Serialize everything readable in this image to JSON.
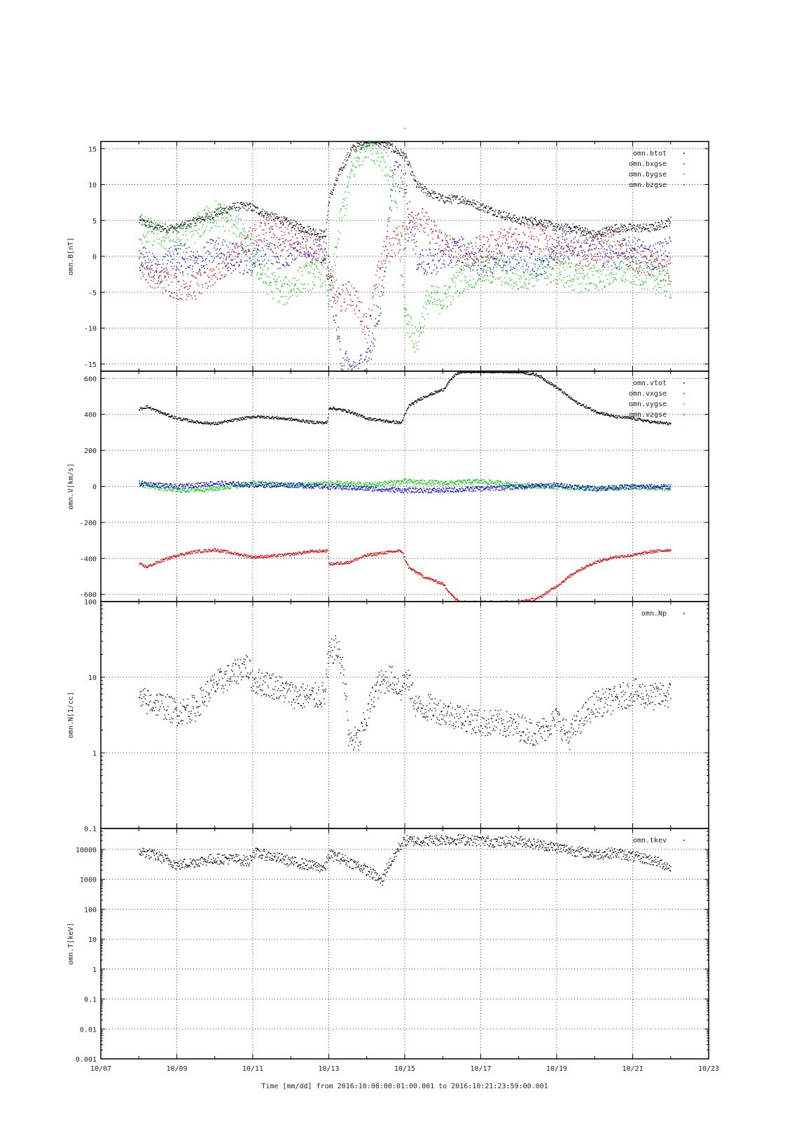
{
  "figure": {
    "top_mark": "-",
    "xlabel": "Time [mm/dd]  from 2016:10:08:00:01:00.001  to  2016:10:21:23:59:00.001",
    "x_tick_labels": [
      "10/07",
      "10/09",
      "10/11",
      "10/13",
      "10/15",
      "10/17",
      "10/19",
      "10/21",
      "10/23"
    ]
  },
  "colors": {
    "black": "#000000",
    "red": "#e00000",
    "green": "#00cc00",
    "blue": "#0000e0"
  },
  "chart_data": [
    {
      "type": "scatter",
      "ylabel": "omn.B[nT]",
      "yscale": "linear",
      "ylim": [
        -16,
        16
      ],
      "y_ticks": [
        -15,
        -10,
        -5,
        0,
        5,
        10,
        15
      ],
      "y_tick_labels": [
        "-15",
        "-10",
        "-5",
        "0",
        "5",
        "10",
        "15"
      ],
      "xlim_days": [
        7,
        23
      ],
      "grid": true,
      "legend_position": "top-right",
      "series": [
        {
          "name": "omn.btot",
          "color": "#000000",
          "x": [
            8.0,
            8.5,
            9.0,
            9.5,
            10.0,
            10.5,
            10.9,
            11.3,
            11.8,
            12.3,
            12.9,
            13.0,
            13.3,
            13.6,
            14.0,
            14.4,
            14.7,
            15.0,
            15.3,
            15.6,
            16.0,
            16.5,
            17.0,
            17.5,
            18.0,
            18.5,
            19.0,
            19.5,
            20.0,
            20.5,
            21.0,
            21.5,
            22.0
          ],
          "y": [
            5,
            4,
            4,
            5,
            6,
            7,
            7,
            6,
            5,
            4,
            3,
            8,
            12,
            15,
            16,
            16,
            15,
            14,
            10,
            9,
            8,
            8,
            7,
            6,
            5,
            5,
            4,
            4,
            3,
            4,
            4,
            4,
            5
          ]
        },
        {
          "name": "omn.bxgse",
          "color": "#e00000",
          "x": [
            8.0,
            8.5,
            9.0,
            9.5,
            10.0,
            10.5,
            10.9,
            11.3,
            11.8,
            12.3,
            12.9,
            13.0,
            13.3,
            13.6,
            14.0,
            14.4,
            14.7,
            15.0,
            15.3,
            15.6,
            16.0,
            16.5,
            17.0,
            17.5,
            18.0,
            18.5,
            19.0,
            19.5,
            20.0,
            20.5,
            21.0,
            21.5,
            22.0
          ],
          "y": [
            -1,
            -3,
            -4,
            -4,
            -2,
            0,
            2,
            4,
            3,
            2,
            1,
            -4,
            -6,
            -5,
            -10,
            0,
            2,
            3,
            6,
            4,
            2,
            0,
            1,
            2,
            3,
            3,
            1,
            0,
            1,
            2,
            0,
            -1,
            -2
          ]
        },
        {
          "name": "omn.bygse",
          "color": "#00cc00",
          "x": [
            8.0,
            8.5,
            9.0,
            9.5,
            10.0,
            10.5,
            10.9,
            11.3,
            11.8,
            12.3,
            12.9,
            13.0,
            13.3,
            13.6,
            14.0,
            14.4,
            14.7,
            15.0,
            15.3,
            15.6,
            16.0,
            16.5,
            17.0,
            17.5,
            18.0,
            18.5,
            19.0,
            19.5,
            20.0,
            20.5,
            21.0,
            21.5,
            22.0
          ],
          "y": [
            4,
            3,
            2,
            4,
            6,
            5,
            1,
            -3,
            -5,
            -3,
            -2,
            -6,
            5,
            12,
            16,
            14,
            10,
            -8,
            -12,
            -6,
            -6,
            -3,
            -2,
            -2,
            -3,
            -2,
            -2,
            -3,
            -3,
            -2,
            -2,
            -3,
            -4
          ]
        },
        {
          "name": "omn.bzgse",
          "color": "#0000e0",
          "x": [
            8.0,
            8.5,
            9.0,
            9.5,
            10.0,
            10.5,
            10.9,
            11.3,
            11.8,
            12.3,
            12.9,
            13.0,
            13.3,
            13.6,
            14.0,
            14.4,
            14.7,
            15.0,
            15.3,
            15.6,
            16.0,
            16.5,
            17.0,
            17.5,
            18.0,
            18.5,
            19.0,
            19.5,
            20.0,
            20.5,
            21.0,
            21.5,
            22.0
          ],
          "y": [
            0,
            -2,
            0,
            -1,
            1,
            0,
            -1,
            1,
            0,
            2,
            0,
            -2,
            -14,
            -16,
            -15,
            -5,
            12,
            10,
            0,
            -1,
            0,
            1,
            -1,
            0,
            0,
            -1,
            1,
            2,
            1,
            0,
            1,
            0,
            1
          ]
        }
      ]
    },
    {
      "type": "scatter",
      "ylabel": "omn.V[km/s]",
      "yscale": "linear",
      "ylim": [
        -640,
        640
      ],
      "y_ticks": [
        -600,
        -400,
        -200,
        0,
        200,
        400,
        600
      ],
      "y_tick_labels": [
        "-600",
        "-400",
        "-200",
        "0",
        "200",
        "400",
        "600"
      ],
      "xlim_days": [
        7,
        23
      ],
      "grid": true,
      "legend_position": "top-right",
      "series": [
        {
          "name": "omn.vtot",
          "color": "#000000",
          "x": [
            8.0,
            8.2,
            8.6,
            9.0,
            9.5,
            10.0,
            10.5,
            11.0,
            11.5,
            12.0,
            12.5,
            12.95,
            13.0,
            13.5,
            14.0,
            14.5,
            14.9,
            15.1,
            15.5,
            16.0,
            16.3,
            16.5,
            17.0,
            17.5,
            18.0,
            18.5,
            19.0,
            19.5,
            20.0,
            20.5,
            21.0,
            21.5,
            22.0
          ],
          "y": [
            430,
            445,
            410,
            380,
            360,
            350,
            370,
            390,
            385,
            375,
            360,
            355,
            440,
            420,
            380,
            365,
            355,
            450,
            500,
            540,
            620,
            640,
            640,
            640,
            640,
            620,
            550,
            470,
            420,
            390,
            380,
            360,
            350
          ]
        },
        {
          "name": "omn.vxgse",
          "color": "#e00000",
          "x": [
            8.0,
            8.2,
            8.6,
            9.0,
            9.5,
            10.0,
            10.5,
            11.0,
            11.5,
            12.0,
            12.5,
            12.95,
            13.0,
            13.5,
            14.0,
            14.5,
            14.9,
            15.1,
            15.5,
            16.0,
            16.3,
            16.5,
            17.0,
            17.5,
            18.0,
            18.5,
            19.0,
            19.5,
            20.0,
            20.5,
            21.0,
            21.5,
            22.0
          ],
          "y": [
            -430,
            -445,
            -410,
            -380,
            -360,
            -350,
            -370,
            -390,
            -385,
            -375,
            -360,
            -355,
            -430,
            -420,
            -380,
            -365,
            -355,
            -450,
            -500,
            -540,
            -620,
            -640,
            -640,
            -640,
            -640,
            -620,
            -550,
            -470,
            -420,
            -390,
            -380,
            -360,
            -350
          ]
        },
        {
          "name": "omn.vygse",
          "color": "#00cc00",
          "x": [
            8.0,
            9.0,
            10.0,
            11.0,
            12.0,
            13.0,
            14.0,
            15.0,
            16.0,
            17.0,
            18.0,
            19.0,
            20.0,
            21.0,
            22.0
          ],
          "y": [
            15,
            -20,
            -10,
            20,
            10,
            20,
            10,
            30,
            20,
            30,
            10,
            0,
            -10,
            0,
            -10
          ]
        },
        {
          "name": "omn.vzgse",
          "color": "#0000e0",
          "x": [
            8.0,
            9.0,
            10.0,
            11.0,
            12.0,
            13.0,
            14.0,
            15.0,
            16.0,
            17.0,
            18.0,
            19.0,
            20.0,
            21.0,
            22.0
          ],
          "y": [
            20,
            0,
            20,
            10,
            10,
            0,
            -10,
            -20,
            -20,
            -10,
            0,
            10,
            -10,
            0,
            0
          ]
        }
      ]
    },
    {
      "type": "scatter",
      "ylabel": "omn.N[1/cc]",
      "yscale": "log",
      "ylim": [
        0.1,
        100
      ],
      "y_ticks": [
        0.1,
        1,
        10,
        100
      ],
      "y_tick_labels": [
        "0.1",
        "1",
        "10",
        "100"
      ],
      "xlim_days": [
        7,
        23
      ],
      "grid": true,
      "legend_position": "top-right",
      "series": [
        {
          "name": "omn.Np",
          "color": "#000000",
          "x": [
            8.0,
            8.5,
            9.0,
            9.5,
            10.0,
            10.5,
            10.8,
            11.0,
            11.5,
            12.0,
            12.5,
            12.9,
            13.0,
            13.2,
            13.5,
            13.8,
            14.0,
            14.3,
            14.6,
            14.9,
            15.0,
            15.3,
            15.7,
            16.0,
            16.5,
            17.0,
            17.5,
            18.0,
            18.5,
            19.0,
            19.3,
            19.7,
            20.0,
            20.5,
            21.0,
            21.5,
            22.0
          ],
          "y": [
            5,
            4.5,
            3.5,
            4,
            8,
            11,
            15,
            9,
            8,
            6,
            5.5,
            6,
            20,
            25,
            1.5,
            1.5,
            3,
            8,
            10,
            7,
            10,
            4,
            4,
            3.5,
            3,
            2.5,
            2.5,
            2.2,
            1.8,
            2.8,
            1.6,
            3,
            4.5,
            5,
            6.5,
            5.5,
            6
          ]
        }
      ]
    },
    {
      "type": "scatter",
      "ylabel": "omn.T[keV]",
      "yscale": "log",
      "ylim": [
        0.001,
        50000
      ],
      "y_ticks": [
        0.001,
        0.01,
        0.1,
        1,
        10,
        100,
        1000,
        10000
      ],
      "y_tick_labels": [
        "0.001",
        "0.01",
        "0.1",
        "1",
        "10",
        "100",
        "1000",
        "10000"
      ],
      "xlim_days": [
        7,
        23
      ],
      "grid": true,
      "legend_position": "top-right",
      "series": [
        {
          "name": "omn.tkev",
          "color": "#000000",
          "x": [
            8.0,
            8.5,
            9.0,
            9.5,
            10.0,
            10.5,
            10.9,
            11.0,
            11.5,
            12.0,
            12.5,
            12.9,
            13.0,
            13.5,
            14.0,
            14.4,
            14.7,
            15.0,
            15.5,
            16.0,
            16.5,
            17.0,
            17.5,
            18.0,
            18.5,
            19.0,
            19.5,
            20.0,
            20.5,
            21.0,
            21.5,
            22.0
          ],
          "y": [
            9000,
            6000,
            3000,
            4000,
            5000,
            5000,
            4000,
            8000,
            6000,
            4000,
            3000,
            2500,
            7000,
            4000,
            2000,
            800,
            5000,
            20000,
            20000,
            22000,
            22000,
            20000,
            18000,
            20000,
            15000,
            12000,
            9000,
            7000,
            8000,
            6000,
            4500,
            2500
          ]
        }
      ]
    }
  ]
}
